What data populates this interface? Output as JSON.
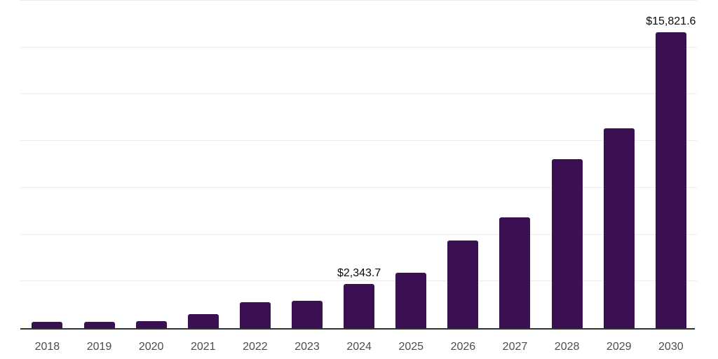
{
  "chart_data": {
    "type": "bar",
    "title": "",
    "xlabel": "",
    "ylabel": "",
    "categories": [
      "2018",
      "2019",
      "2020",
      "2021",
      "2022",
      "2023",
      "2024",
      "2025",
      "2026",
      "2027",
      "2028",
      "2029",
      "2030"
    ],
    "values": [
      355,
      337,
      393,
      767,
      1404,
      1479,
      2343.7,
      2976,
      4698,
      5933,
      9043,
      10670,
      15821.6
    ],
    "data_labels": [
      "",
      "",
      "",
      "",
      "",
      "",
      "$2,343.7",
      "",
      "",
      "",
      "",
      "",
      "$15,821.6"
    ],
    "ylim": [
      0,
      17500
    ],
    "gridline_interval": 2500,
    "grid": true,
    "legend": false,
    "bar_color": "#3a1052",
    "axis_line_color": "#333333",
    "gridline_color": "#ededed",
    "tick_label_color": "#4d4d4d",
    "value_label_color": "#0a0a0a"
  }
}
